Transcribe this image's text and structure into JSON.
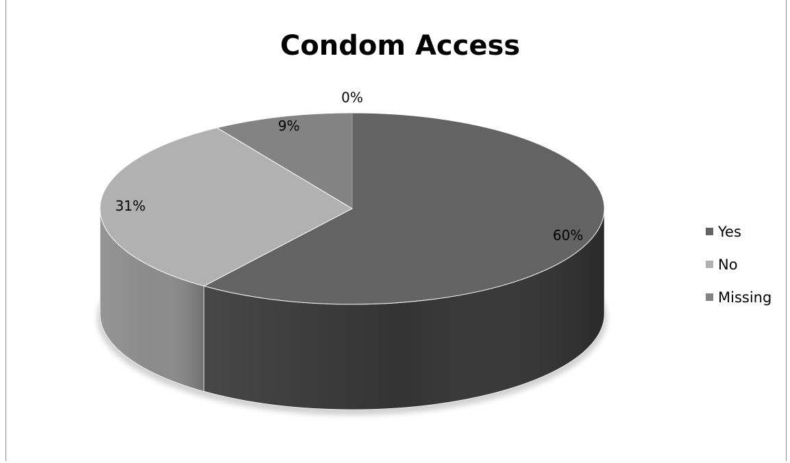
{
  "chart_data": {
    "type": "pie",
    "title": "Condom Access",
    "categories": [
      "Yes",
      "No",
      "Missing",
      ""
    ],
    "values": [
      60,
      31,
      9,
      0
    ],
    "data_labels": [
      "60%",
      "31%",
      "9%",
      "0%"
    ],
    "colors": [
      "#636363",
      "#b1b1b1",
      "#838383",
      "#a0a0a0"
    ],
    "side_colors": [
      "#333333",
      "#8a8a8a",
      "#606060",
      "#777777"
    ],
    "legend": {
      "placement": "right",
      "entries": [
        {
          "label": "Yes",
          "color": "#636363"
        },
        {
          "label": "No",
          "color": "#b1b1b1"
        },
        {
          "label": "Missing",
          "color": "#838383"
        }
      ]
    },
    "style": "3d-pie"
  }
}
